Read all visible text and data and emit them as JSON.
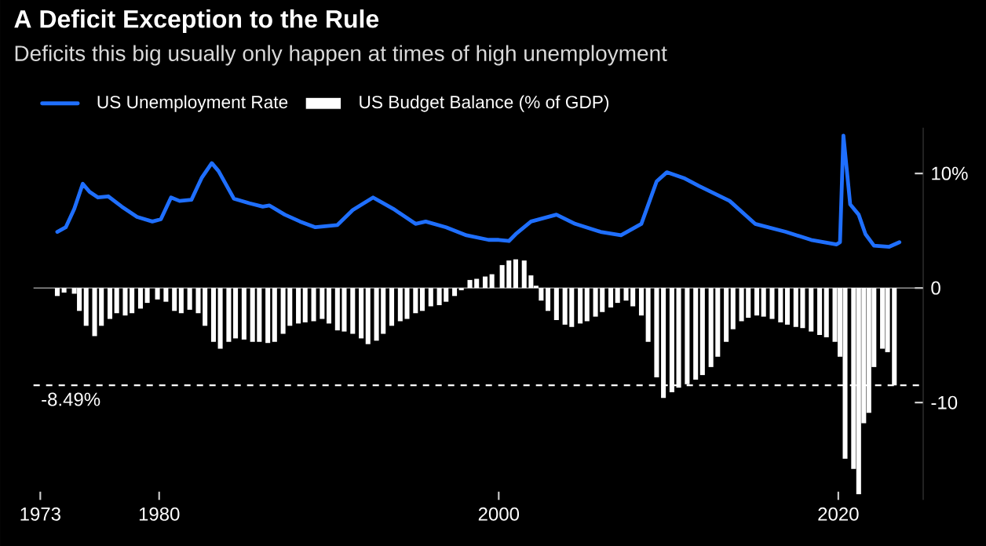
{
  "chart_data": {
    "type": "bar",
    "title": "A Deficit Exception to the Rule",
    "subtitle": "Deficits this big usually only happen at times of high unemployment",
    "series": [
      {
        "name": "US Unemployment Rate",
        "type": "line",
        "color": "#1f6fff",
        "x": [
          1974.0,
          1974.5,
          1975.0,
          1975.5,
          1975.9,
          1976.4,
          1977.0,
          1977.8,
          1978.7,
          1979.6,
          1980.1,
          1980.7,
          1981.2,
          1981.9,
          1982.5,
          1983.1,
          1983.5,
          1984.4,
          1985.3,
          1986.1,
          1986.5,
          1987.4,
          1988.3,
          1989.2,
          1990.5,
          1991.4,
          1992.6,
          1993.8,
          1995.1,
          1995.7,
          1996.9,
          1998.1,
          1999.4,
          2000.0,
          2000.6,
          2001.0,
          2001.9,
          2003.4,
          2004.5,
          2006.0,
          2007.2,
          2008.4,
          2009.3,
          2009.9,
          2010.9,
          2011.8,
          2013.6,
          2015.1,
          2016.9,
          2018.4,
          2019.9,
          2020.1,
          2020.3,
          2020.7,
          2021.2,
          2021.6,
          2022.1,
          2023.0,
          2023.6
        ],
        "values": [
          4.9,
          5.3,
          6.9,
          9.1,
          8.4,
          7.9,
          8.0,
          7.1,
          6.2,
          5.8,
          6.0,
          7.9,
          7.6,
          7.7,
          9.6,
          10.9,
          10.2,
          7.8,
          7.4,
          7.1,
          7.2,
          6.4,
          5.8,
          5.3,
          5.5,
          6.8,
          7.9,
          6.9,
          5.6,
          5.8,
          5.3,
          4.6,
          4.2,
          4.2,
          4.1,
          4.7,
          5.8,
          6.4,
          5.6,
          4.9,
          4.6,
          5.6,
          9.3,
          10.1,
          9.6,
          8.9,
          7.6,
          5.6,
          4.9,
          4.2,
          3.8,
          4.0,
          13.3,
          7.3,
          6.4,
          4.7,
          3.7,
          3.6,
          4.0
        ]
      },
      {
        "name": "US Budget Balance (% of GDP)",
        "color": "#ffffff",
        "x": [
          1974.0,
          1974.4,
          1975.0,
          1975.3,
          1975.7,
          1976.2,
          1976.6,
          1977.1,
          1977.5,
          1978.0,
          1978.4,
          1978.9,
          1979.3,
          1979.9,
          1980.4,
          1980.9,
          1981.3,
          1981.8,
          1982.3,
          1982.7,
          1983.2,
          1983.6,
          1984.1,
          1984.5,
          1985.0,
          1985.5,
          1985.9,
          1986.4,
          1986.8,
          1987.3,
          1987.7,
          1988.2,
          1988.6,
          1989.1,
          1989.6,
          1990.0,
          1990.5,
          1990.9,
          1991.4,
          1991.9,
          1992.3,
          1992.8,
          1993.2,
          1993.7,
          1994.2,
          1994.6,
          1995.1,
          1995.5,
          1996.0,
          1996.5,
          1996.9,
          1997.4,
          1997.8,
          1998.3,
          1998.7,
          1999.2,
          1999.6,
          2000.2,
          2000.6,
          2001.0,
          2001.5,
          2001.9,
          2002.2,
          2002.5,
          2002.9,
          2003.4,
          2003.9,
          2004.3,
          2004.8,
          2005.2,
          2005.7,
          2006.1,
          2006.6,
          2007.0,
          2007.5,
          2007.9,
          2008.4,
          2008.8,
          2009.3,
          2009.7,
          2010.2,
          2010.6,
          2011.1,
          2011.6,
          2012.0,
          2012.5,
          2012.9,
          2013.4,
          2013.8,
          2014.3,
          2014.7,
          2015.2,
          2015.6,
          2016.1,
          2016.6,
          2017.0,
          2017.5,
          2017.9,
          2018.4,
          2018.9,
          2019.3,
          2019.8,
          2020.1,
          2020.4,
          2020.9,
          2021.2,
          2021.5,
          2021.8,
          2022.1,
          2022.6,
          2022.9,
          2023.3
        ],
        "values": [
          -0.7,
          -0.4,
          -0.5,
          -2.0,
          -3.3,
          -4.2,
          -3.3,
          -2.7,
          -2.2,
          -2.4,
          -2.2,
          -1.8,
          -1.3,
          -1.0,
          -1.2,
          -2.0,
          -2.2,
          -1.9,
          -2.2,
          -3.3,
          -4.7,
          -5.3,
          -4.7,
          -4.4,
          -4.5,
          -4.7,
          -4.7,
          -4.8,
          -4.7,
          -4.0,
          -3.3,
          -3.1,
          -3.0,
          -2.9,
          -2.7,
          -3.1,
          -3.7,
          -3.8,
          -4.0,
          -4.4,
          -4.9,
          -4.6,
          -4.0,
          -3.3,
          -2.9,
          -2.7,
          -2.2,
          -2.0,
          -1.6,
          -1.5,
          -1.2,
          -0.7,
          -0.2,
          0.7,
          0.8,
          1.0,
          1.2,
          2.0,
          2.4,
          2.5,
          2.4,
          1.1,
          0.2,
          -1.1,
          -2.0,
          -2.8,
          -3.2,
          -3.4,
          -3.1,
          -2.9,
          -2.5,
          -2.1,
          -1.7,
          -1.3,
          -1.1,
          -1.6,
          -2.4,
          -4.7,
          -7.8,
          -9.6,
          -9.1,
          -8.7,
          -8.4,
          -8.0,
          -7.6,
          -6.9,
          -6.0,
          -4.7,
          -3.6,
          -2.9,
          -2.6,
          -2.4,
          -2.5,
          -2.7,
          -3.0,
          -3.2,
          -3.4,
          -3.5,
          -3.8,
          -4.1,
          -4.3,
          -4.7,
          -6.0,
          -14.9,
          -15.8,
          -18.0,
          -11.8,
          -10.9,
          -6.9,
          -5.3,
          -5.6,
          -8.5
        ]
      }
    ],
    "xlim": [
      1972.6,
      2025
    ],
    "xticks": [
      1973,
      1980,
      2000,
      2020
    ],
    "ylim": [
      -18.5,
      14
    ],
    "yticks": [
      {
        "value": 10,
        "label": "10%"
      },
      {
        "value": 0,
        "label": "0"
      },
      {
        "value": -10,
        "label": "-10"
      }
    ],
    "ref_lines": [
      {
        "axis": "y",
        "value": -8.49,
        "label": "-8.49%",
        "color": "#ffffff",
        "line_style": "dashed"
      }
    ],
    "legend": "top left"
  }
}
